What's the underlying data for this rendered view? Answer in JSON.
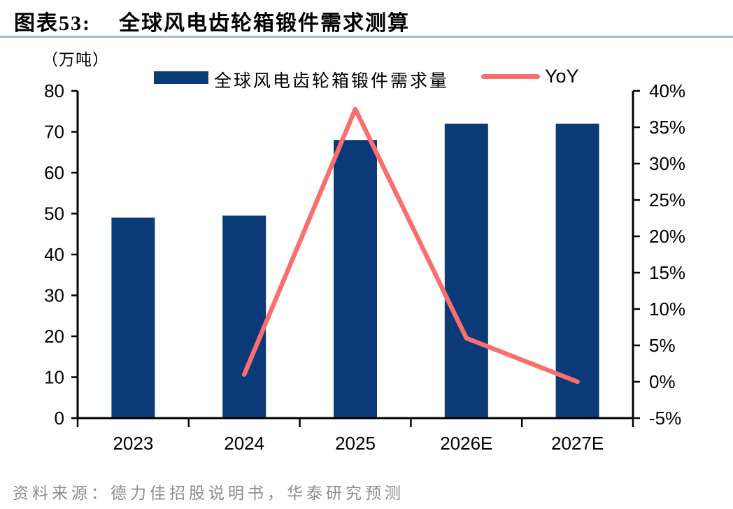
{
  "header": {
    "figure_label": "图表53:",
    "title": "全球风电齿轮箱锻件需求测算"
  },
  "chart_data": {
    "type": "bar",
    "subtype": "bar-line-combo",
    "title": "全球风电齿轮箱锻件需求测算",
    "categories": [
      "2023",
      "2024",
      "2025",
      "2026E",
      "2027E"
    ],
    "series": [
      {
        "name": "全球风电齿轮箱锻件需求量",
        "type": "bar",
        "axis": "left",
        "color": "#0a3a78",
        "values": [
          49,
          49.5,
          68,
          72,
          72
        ]
      },
      {
        "name": "YoY",
        "type": "line",
        "axis": "right",
        "color": "#fa6e6e",
        "unit": "%",
        "values": [
          null,
          1.0,
          37.5,
          6.0,
          0.0
        ]
      }
    ],
    "left_axis": {
      "label": "（万吨）",
      "min": 0,
      "max": 80,
      "step": 10
    },
    "right_axis": {
      "min": -5,
      "max": 40,
      "step": 5,
      "suffix": "%"
    },
    "grid": false,
    "legend_position": "top-center"
  },
  "footer": {
    "source": "资料来源：德力佳招股说明书，华泰研究预测"
  },
  "colors": {
    "bar": "#0a3a78",
    "line": "#fa6e6e",
    "title_rule": "#a4bcd2",
    "axis": "#000000",
    "source_text": "#8c8c8c"
  }
}
